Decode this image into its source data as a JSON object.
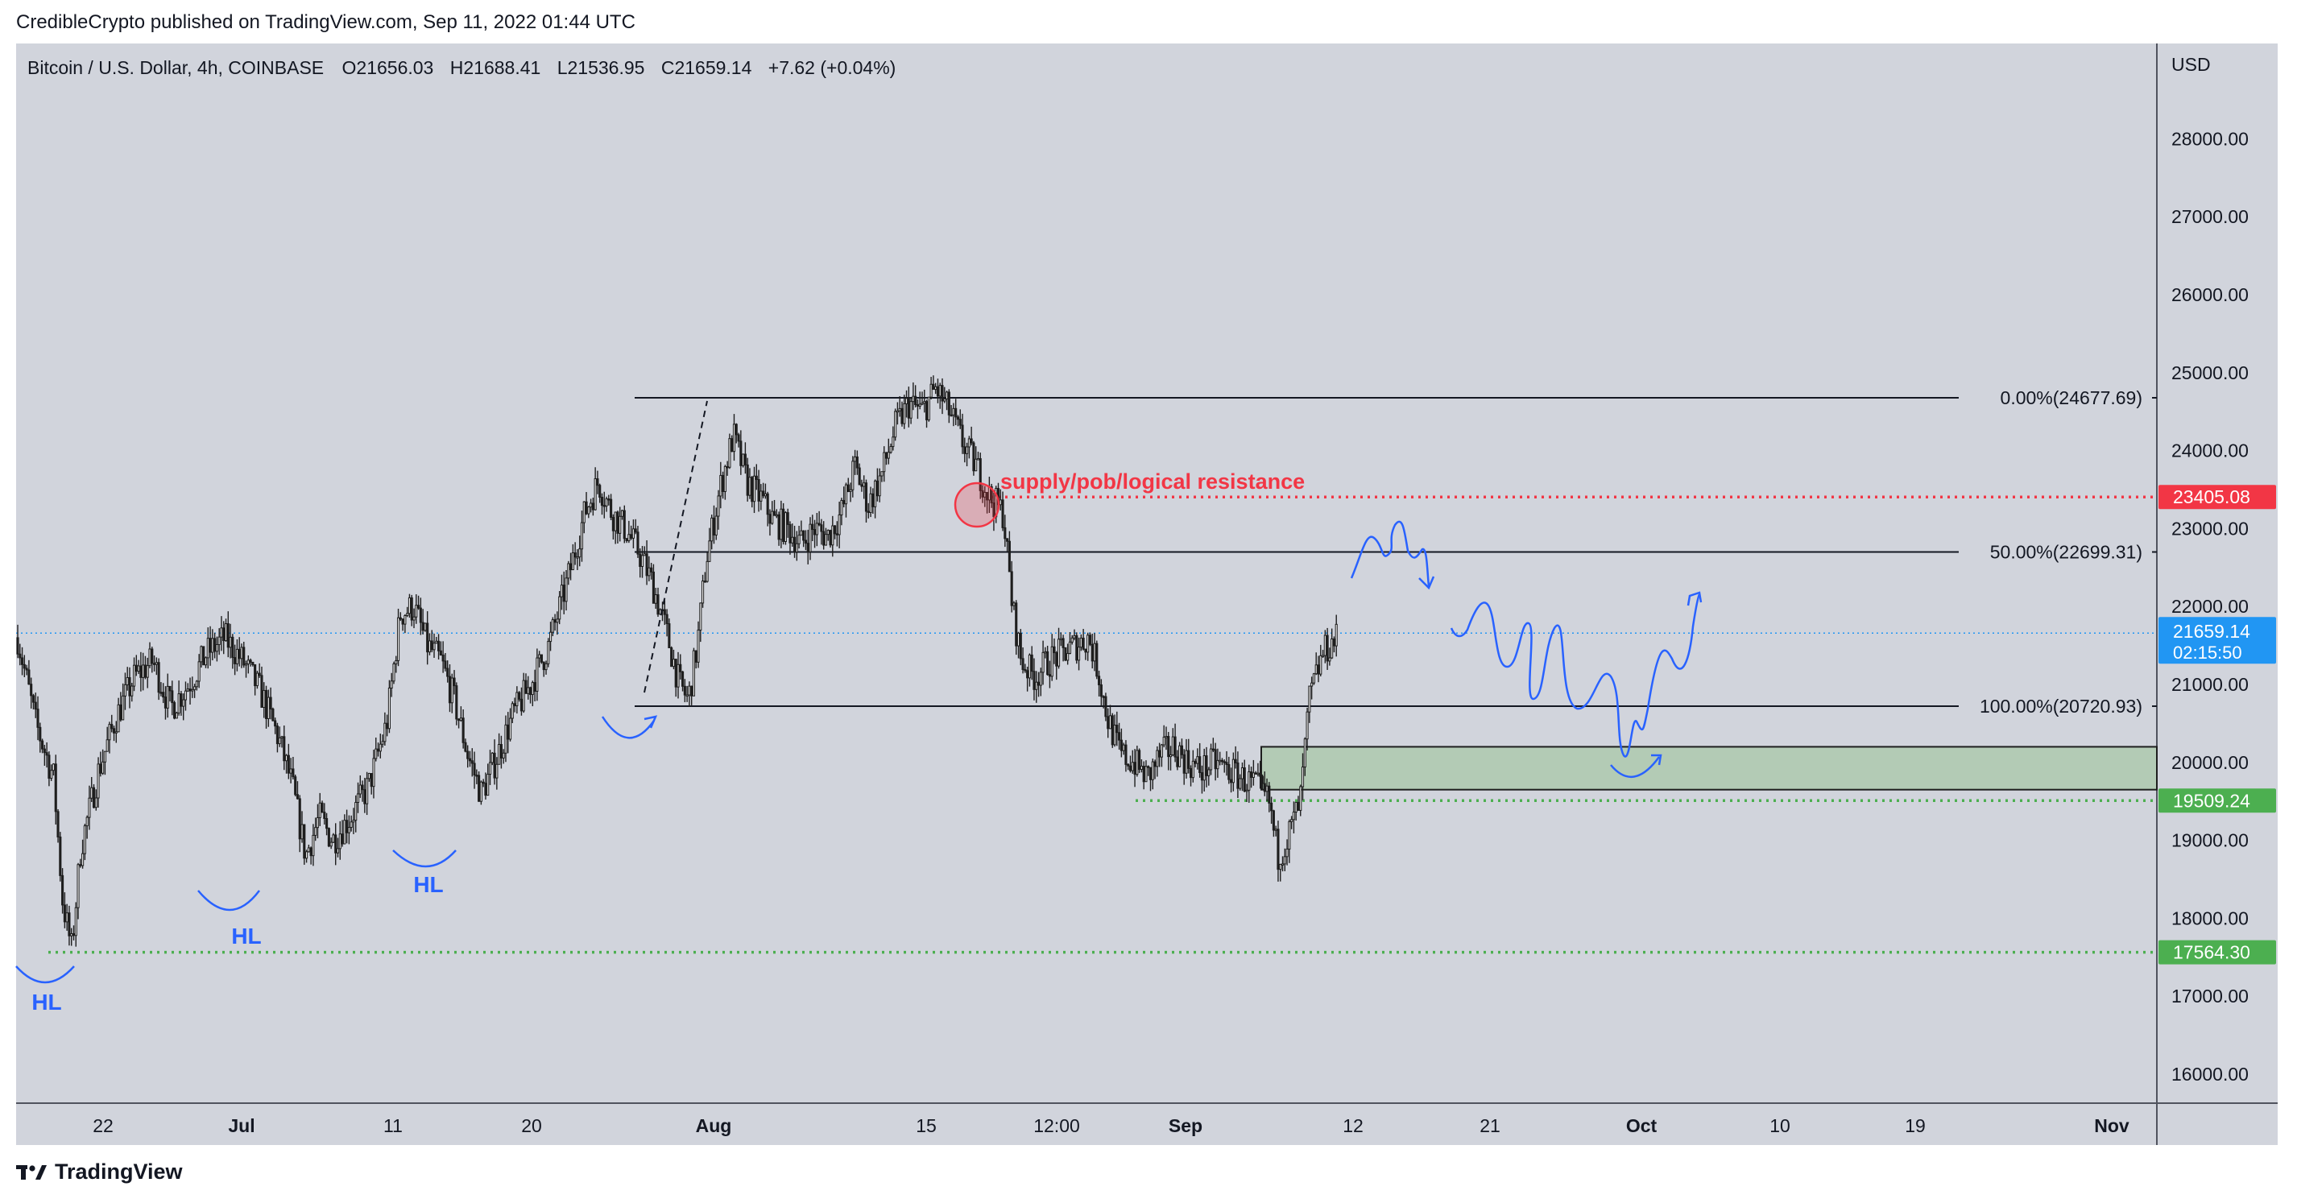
{
  "header": {
    "published_line": "CredibleCrypto published on TradingView.com, Sep 11, 2022 01:44 UTC"
  },
  "legend": {
    "symbol": "Bitcoin / U.S. Dollar, 4h, COINBASE",
    "open_label": "O",
    "open": "21656.03",
    "high_label": "H",
    "high": "21688.41",
    "low_label": "L",
    "low": "21536.95",
    "close_label": "C",
    "close": "21659.14",
    "change": "+7.62 (+0.04%)"
  },
  "footer": {
    "brand": "TradingView"
  },
  "colors": {
    "background": "#d1d4dc",
    "candle": "#1e1e1e",
    "blue_drawing": "#2962ff",
    "red": "#f23645",
    "green": "#4caf50",
    "zone_fill": "#a8c8a8",
    "price_badge": "#2196f3"
  },
  "icons": {
    "footer_logo": "tradingview-logo-icon"
  },
  "chart_data": {
    "type": "candlestick",
    "price_axis_label": "USD",
    "y_ticks": [
      16000,
      17000,
      18000,
      19000,
      20000,
      21000,
      22000,
      23000,
      24000,
      25000,
      26000,
      27000,
      28000
    ],
    "y_tick_labels": [
      "16000.00",
      "17000.00",
      "18000.00",
      "19000.00",
      "20000.00",
      "21000.00",
      "22000.00",
      "23000.00",
      "24000.00",
      "25000.00",
      "26000.00",
      "27000.00",
      "28000.00"
    ],
    "ylim": [
      15500,
      29300
    ],
    "x_tick_labels": [
      "22",
      "Jul",
      "11",
      "20",
      "Aug",
      "15",
      "12:00",
      "Sep",
      "12",
      "21",
      "Oct",
      "10",
      "19",
      "Nov"
    ],
    "x_tick_bold": [
      false,
      true,
      false,
      false,
      true,
      false,
      false,
      true,
      false,
      false,
      true,
      false,
      false,
      true
    ],
    "current_price": 21659.14,
    "current_price_label": "21659.14",
    "countdown": "02:15:50",
    "price_path": [
      [
        0,
        21600
      ],
      [
        4,
        20500
      ],
      [
        8,
        19800
      ],
      [
        10,
        18200
      ],
      [
        12,
        17600
      ],
      [
        14,
        18900
      ],
      [
        18,
        19900
      ],
      [
        22,
        20600
      ],
      [
        26,
        21100
      ],
      [
        30,
        21300
      ],
      [
        34,
        20700
      ],
      [
        38,
        21000
      ],
      [
        42,
        21400
      ],
      [
        46,
        21600
      ],
      [
        50,
        21300
      ],
      [
        54,
        20900
      ],
      [
        58,
        20300
      ],
      [
        61,
        19700
      ],
      [
        64,
        18800
      ],
      [
        67,
        19300
      ],
      [
        70,
        19000
      ],
      [
        74,
        19300
      ],
      [
        78,
        19700
      ],
      [
        82,
        20500
      ],
      [
        85,
        21900
      ],
      [
        88,
        22000
      ],
      [
        91,
        21500
      ],
      [
        94,
        21300
      ],
      [
        97,
        20800
      ],
      [
        100,
        20100
      ],
      [
        103,
        19600
      ],
      [
        106,
        20000
      ],
      [
        110,
        20600
      ],
      [
        114,
        21000
      ],
      [
        118,
        21500
      ],
      [
        122,
        22300
      ],
      [
        126,
        23200
      ],
      [
        129,
        23600
      ],
      [
        132,
        23200
      ],
      [
        135,
        23000
      ],
      [
        138,
        22700
      ],
      [
        141,
        22300
      ],
      [
        144,
        21700
      ],
      [
        147,
        21000
      ],
      [
        149,
        20800
      ],
      [
        151,
        21500
      ],
      [
        153,
        22600
      ],
      [
        156,
        23500
      ],
      [
        159,
        24200
      ],
      [
        162,
        23600
      ],
      [
        165,
        23400
      ],
      [
        168,
        23100
      ],
      [
        171,
        23000
      ],
      [
        174,
        22800
      ],
      [
        177,
        23000
      ],
      [
        180,
        22900
      ],
      [
        183,
        23200
      ],
      [
        186,
        23800
      ],
      [
        189,
        23300
      ],
      [
        192,
        23700
      ],
      [
        195,
        24300
      ],
      [
        198,
        24600
      ],
      [
        201,
        24500
      ],
      [
        204,
        24800
      ],
      [
        207,
        24500
      ],
      [
        210,
        24100
      ],
      [
        213,
        23800
      ],
      [
        216,
        23400
      ],
      [
        219,
        23200
      ],
      [
        221,
        22000
      ],
      [
        223,
        21300
      ],
      [
        226,
        21100
      ],
      [
        229,
        21300
      ],
      [
        232,
        21400
      ],
      [
        235,
        21500
      ],
      [
        238,
        21600
      ],
      [
        240,
        21200
      ],
      [
        242,
        20600
      ],
      [
        245,
        20100
      ],
      [
        248,
        20000
      ],
      [
        251,
        19800
      ],
      [
        254,
        20100
      ],
      [
        257,
        20200
      ],
      [
        260,
        20000
      ],
      [
        263,
        19900
      ],
      [
        266,
        20000
      ],
      [
        269,
        19900
      ],
      [
        272,
        19800
      ],
      [
        275,
        19700
      ],
      [
        278,
        19500
      ],
      [
        280,
        18800
      ],
      [
        282,
        19000
      ],
      [
        285,
        19500
      ],
      [
        287,
        20800
      ],
      [
        290,
        21400
      ],
      [
        293,
        21600
      ]
    ],
    "fib_levels": [
      {
        "ratio_label": "0.00%(24677.69)",
        "price": 24677.69
      },
      {
        "ratio_label": "50.00%(22699.31)",
        "price": 22699.31
      },
      {
        "ratio_label": "100.00%(20720.93)",
        "price": 20720.93
      }
    ],
    "horizontal_levels": [
      {
        "price": 23405.08,
        "label": "23405.08",
        "color": "#f23645",
        "style": "dotted"
      },
      {
        "price": 19509.24,
        "label": "19509.24",
        "color": "#4caf50",
        "style": "dotted"
      },
      {
        "price": 17564.3,
        "label": "17564.30",
        "color": "#4caf50",
        "style": "dotted"
      }
    ],
    "demand_zone": {
      "top": 20200,
      "bottom": 19650
    },
    "annotations": {
      "resistance_text": "supply/pob/logical resistance",
      "hl_labels": [
        "HL",
        "HL",
        "HL"
      ]
    },
    "projection_path": [
      [
        21800,
        22400
      ],
      [
        22000,
        23000
      ],
      [
        21900,
        23100
      ],
      [
        21950,
        22850
      ],
      [
        22000,
        23100
      ],
      [
        22100,
        22700
      ]
    ]
  }
}
